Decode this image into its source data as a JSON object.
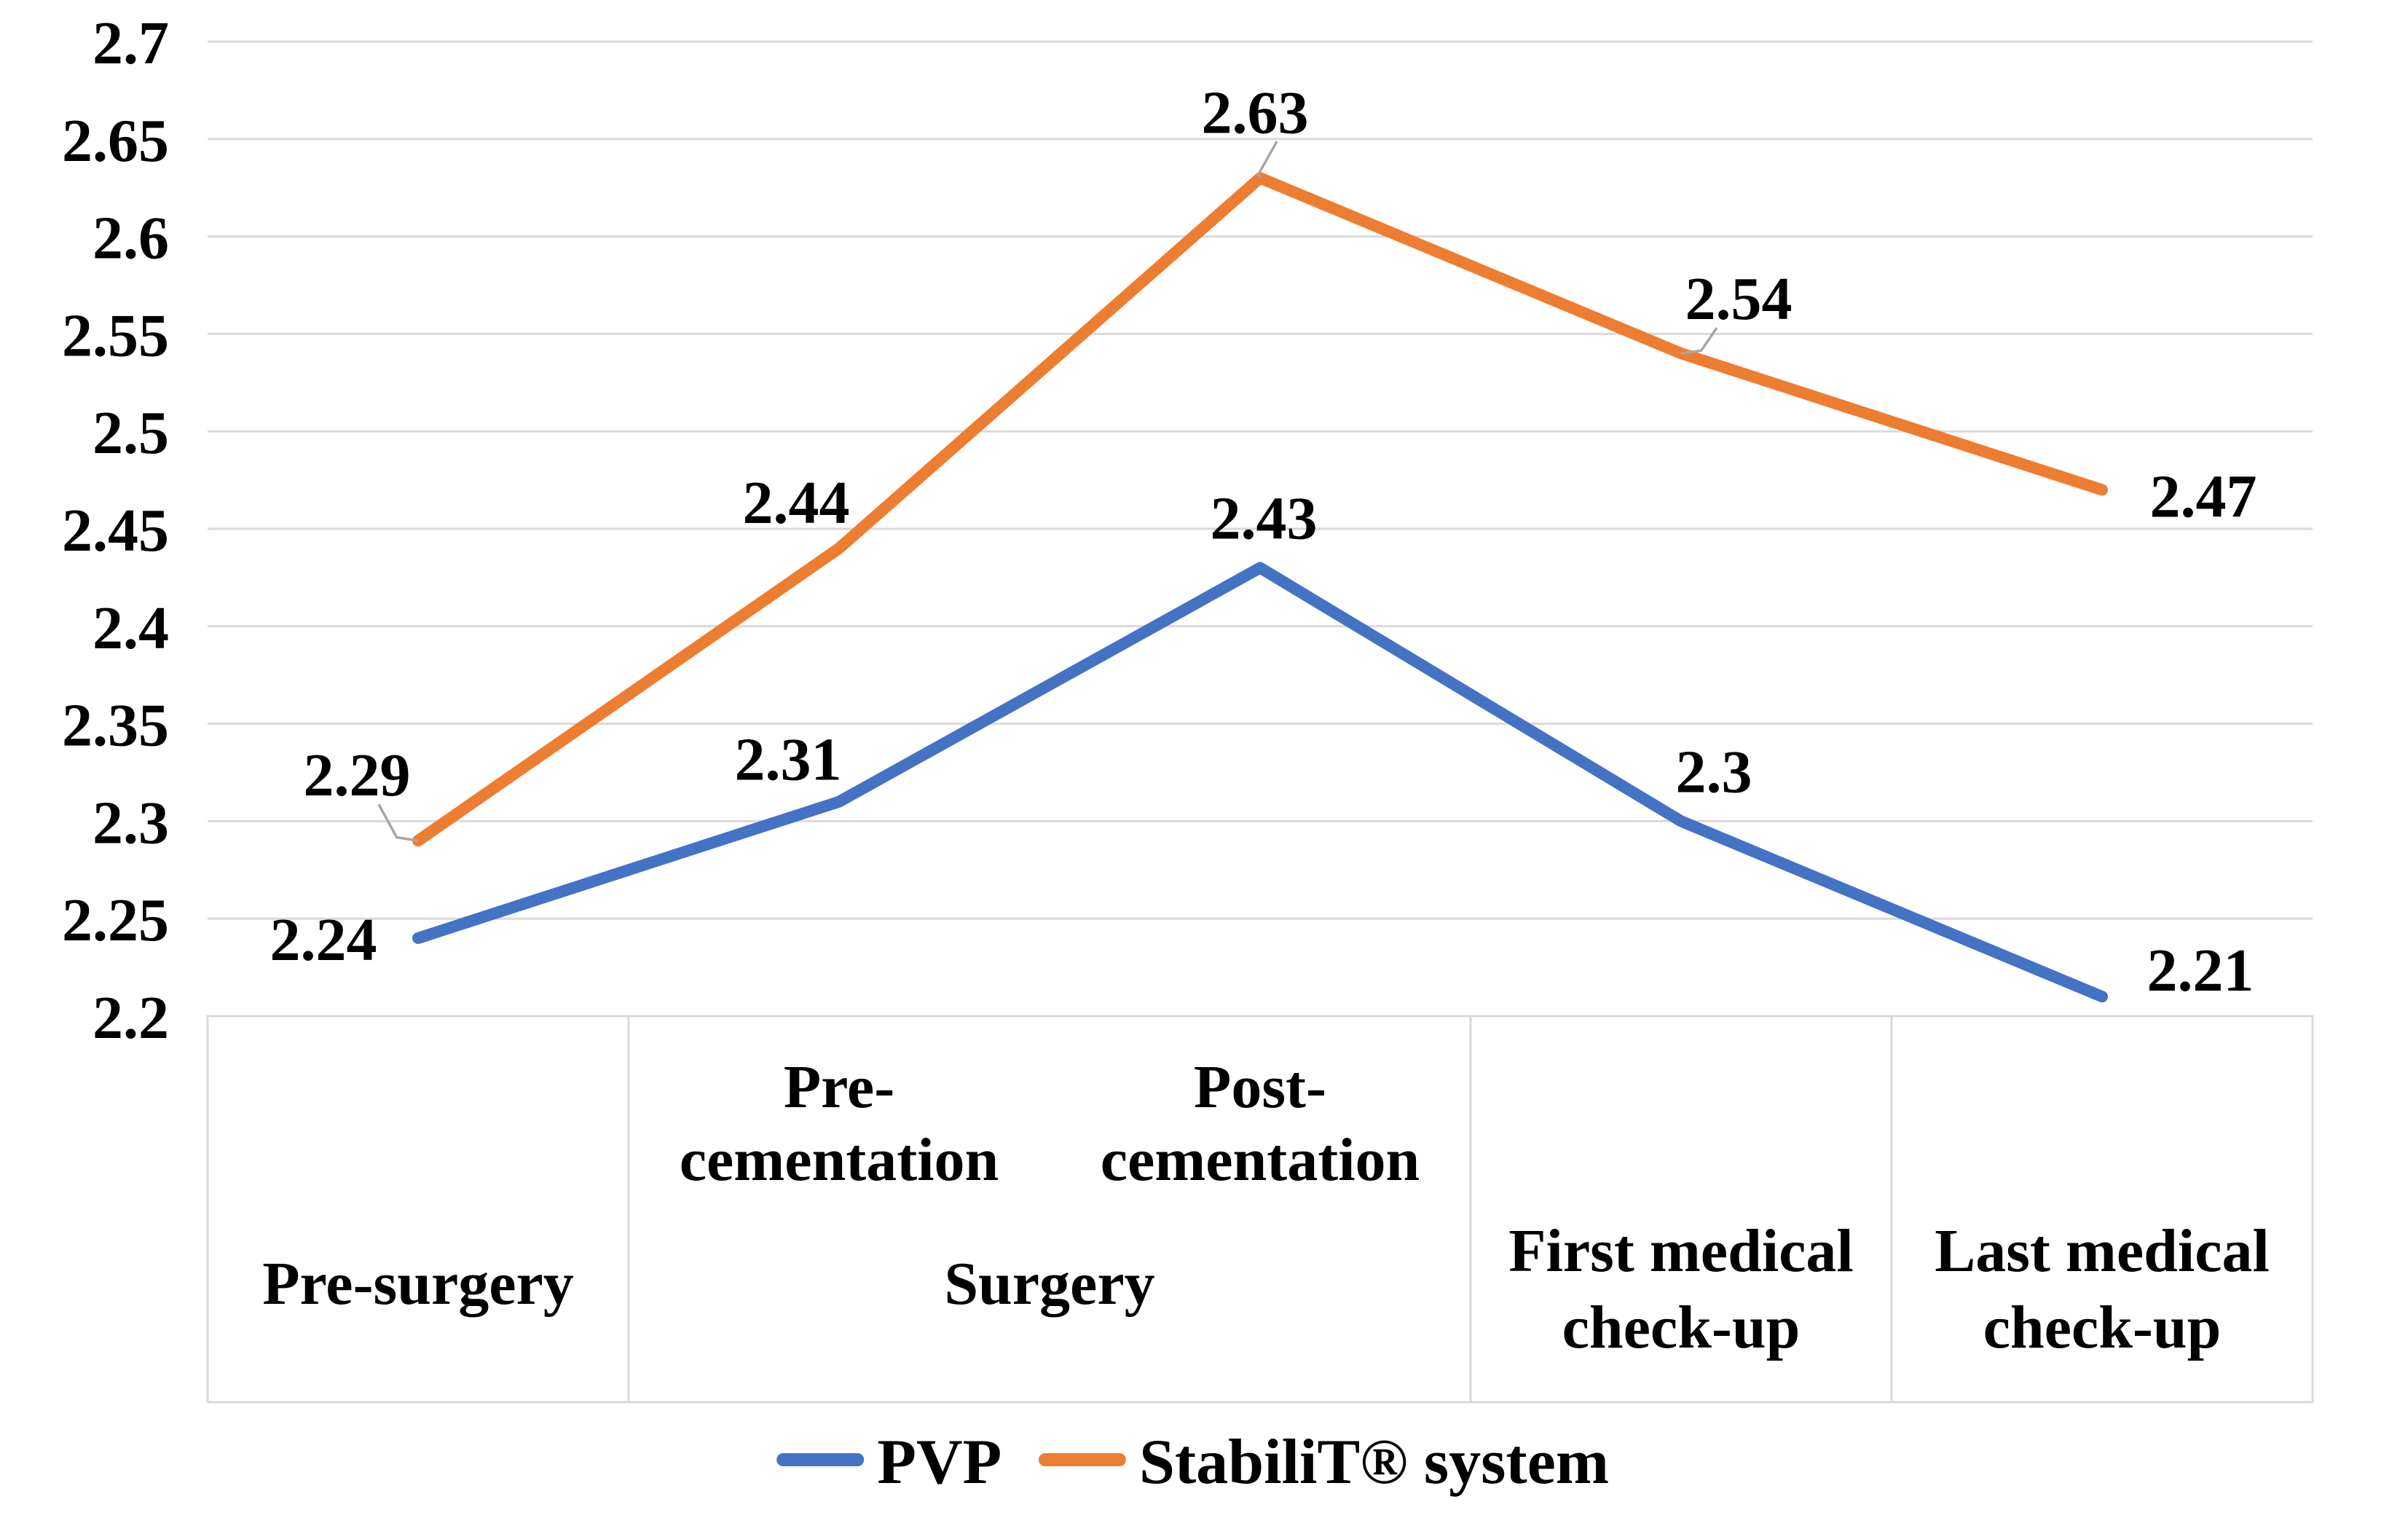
{
  "chart_data": {
    "type": "line",
    "title": "",
    "xlabel": "",
    "ylabel": "",
    "ylim": [
      2.2,
      2.7
    ],
    "ytick_step": 0.05,
    "ytick_labels": [
      "2.2",
      "2.25",
      "2.3",
      "2.35",
      "2.4",
      "2.45",
      "2.5",
      "2.55",
      "2.6",
      "2.65",
      "2.7"
    ],
    "grid": true,
    "gridline_color": "#d9d9d9",
    "axis_box_color": "#d9d9d9",
    "leader_line_color": "#a6a6a6",
    "point_count": 5,
    "categories": [
      "Pre-surgery",
      "Surgery / Pre-cementation",
      "Surgery / Post-cementation",
      "First medical check-up",
      "Last medical check-up"
    ],
    "category_groups": [
      {
        "label_lines": [
          "Pre-surgery"
        ],
        "start": 0,
        "span": 1
      },
      {
        "label_lines": [
          "Surgery"
        ],
        "start": 1,
        "span": 2
      },
      {
        "label_lines": [
          "First medical",
          "check-up"
        ],
        "start": 3,
        "span": 1
      },
      {
        "label_lines": [
          "Last medical",
          "check-up"
        ],
        "start": 4,
        "span": 1
      }
    ],
    "category_sublabels": [
      {
        "lines": [
          "Pre-",
          "cementation"
        ],
        "col": 1
      },
      {
        "lines": [
          "Post-",
          "cementation"
        ],
        "col": 2
      }
    ],
    "series": [
      {
        "name": "PVP",
        "color": "#4472C4",
        "values": [
          2.24,
          2.31,
          2.43,
          2.3,
          2.21
        ],
        "point_labels": [
          "2.24",
          "2.31",
          "2.43",
          "2.3",
          "2.21"
        ]
      },
      {
        "name": "StabiliT® system",
        "color": "#ED7D31",
        "values": [
          2.29,
          2.44,
          2.63,
          2.54,
          2.47
        ],
        "point_labels": [
          "2.29",
          "2.44",
          "2.63",
          "2.54",
          "2.47"
        ]
      }
    ],
    "leader_lines": [
      {
        "series_index": 1,
        "point_index": 0
      },
      {
        "series_index": 1,
        "point_index": 2
      },
      {
        "series_index": 1,
        "point_index": 3
      }
    ],
    "legend_position": "bottom",
    "legend": {
      "items": [
        {
          "label": "PVP",
          "color": "#4472C4"
        },
        {
          "label": "StabiliT® system",
          "color": "#ED7D31"
        }
      ]
    }
  }
}
